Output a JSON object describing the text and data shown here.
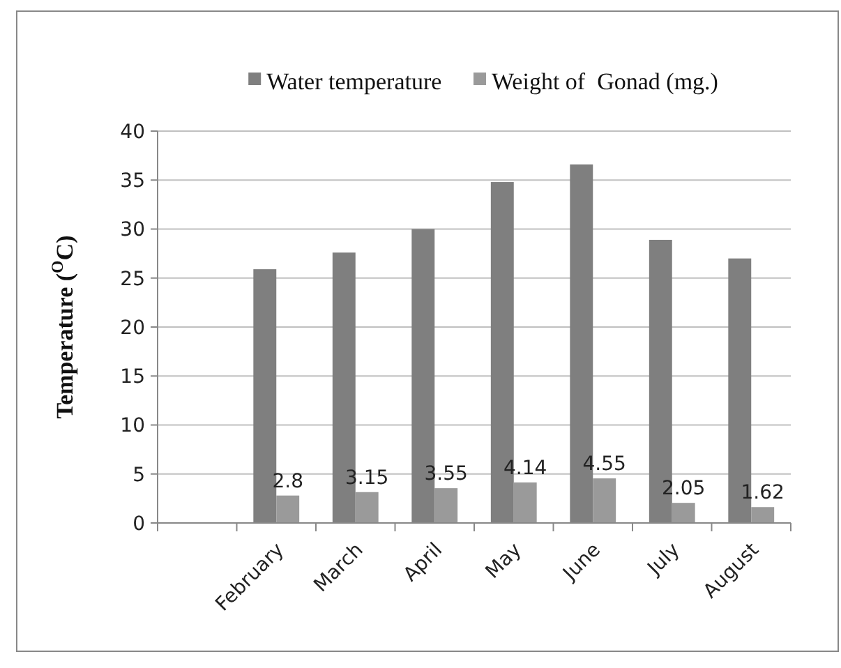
{
  "chart_data": {
    "type": "bar",
    "ylabel": "Temperature ($^{O}$C)",
    "categories": [
      null,
      "February",
      "March",
      "April",
      "May",
      "June",
      "July",
      "August"
    ],
    "series": [
      {
        "name": "Water temperature",
        "color": "#7f7f7f",
        "values": [
          null,
          25.9,
          27.6,
          30,
          34.8,
          36.6,
          28.9,
          27
        ]
      },
      {
        "name": "Weight of  Gonad (mg.)",
        "color": "#9a9a9a",
        "values": [
          null,
          2.8,
          3.15,
          3.55,
          4.14,
          4.55,
          2.05,
          1.62
        ],
        "value_labels": [
          null,
          "2.8",
          "3.15",
          "3.55",
          "4.14",
          "4.55",
          "2.05",
          "1.62"
        ]
      }
    ],
    "ylim": [
      0,
      40
    ],
    "yticks": [
      0,
      5,
      10,
      15,
      20,
      25,
      30,
      35,
      40
    ],
    "grid": "y",
    "legend": "top"
  }
}
